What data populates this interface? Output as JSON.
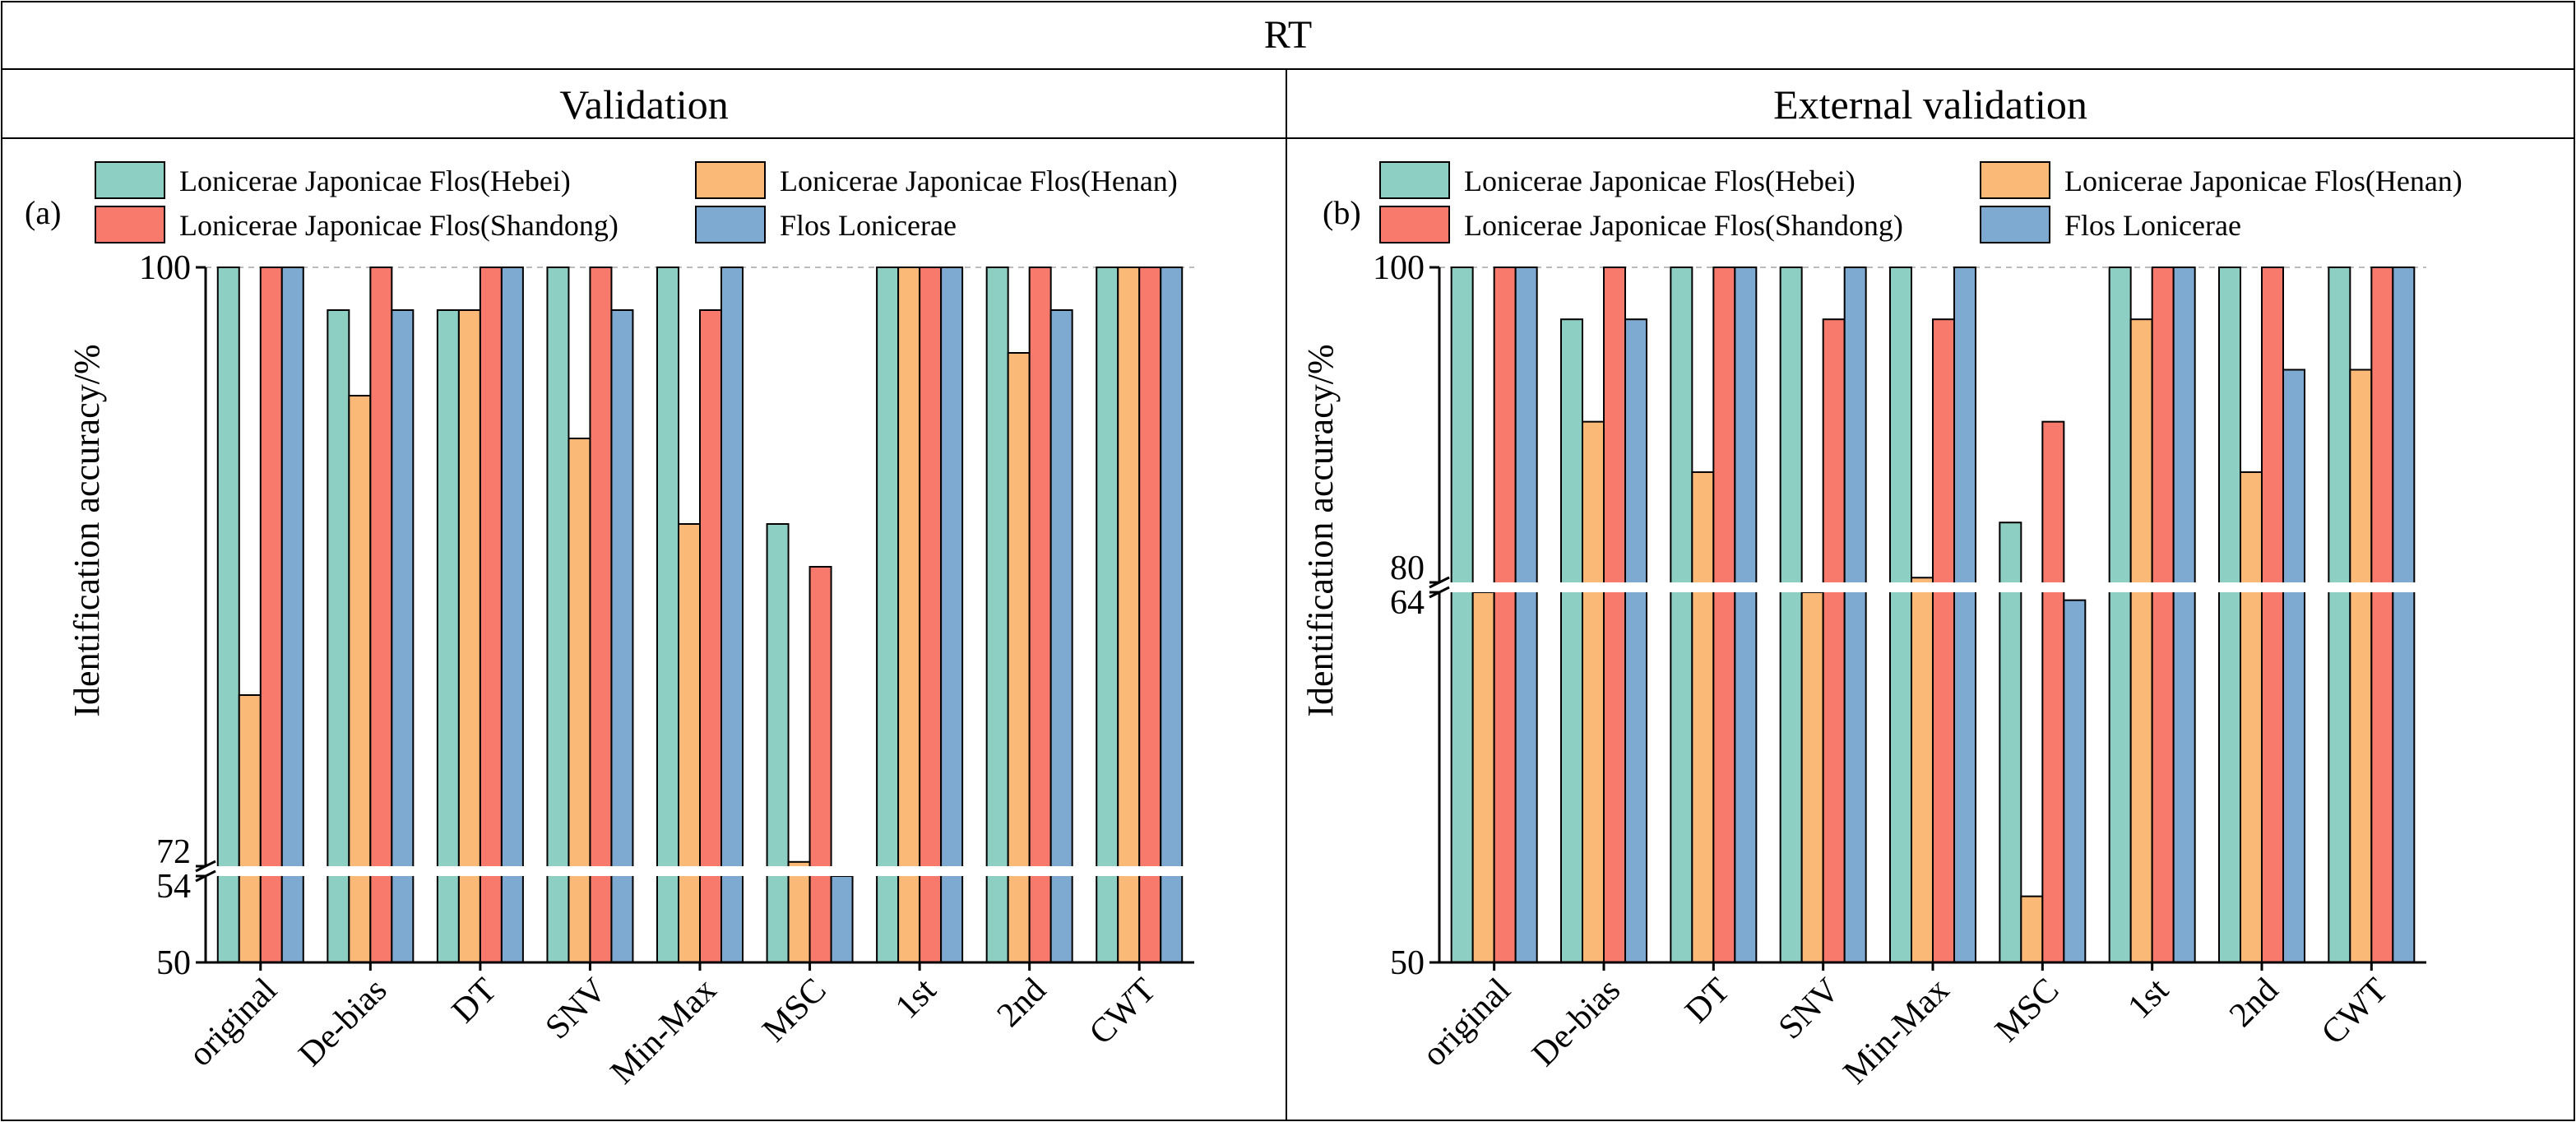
{
  "header": {
    "title": "RT"
  },
  "legend_entries": [
    "Lonicerae Japonicae Flos(Hebei)",
    "Lonicerae Japonicae Flos(Henan)",
    "Lonicerae Japonicae Flos(Shandong)",
    "Flos Lonicerae"
  ],
  "colors": {
    "Lonicerae Japonicae Flos(Hebei)": "#8ecfc4",
    "Lonicerae Japonicae Flos(Henan)": "#fbb977",
    "Lonicerae Japonicae Flos(Shandong)": "#f77a6c",
    "Flos Lonicerae": "#7ea9d1"
  },
  "chart_data": [
    {
      "type": "bar",
      "panel_title": "Validation",
      "panel_label": "(a)",
      "ylabel": "Identification accuracy/%",
      "ylim": [
        50,
        100
      ],
      "axis_break": [
        54,
        72
      ],
      "yticks": [
        50,
        54,
        72,
        100
      ],
      "legend_position": "top",
      "categories": [
        "original",
        "De-bias",
        "DT",
        "SNV",
        "Min-Max",
        "MSC",
        "1st",
        "2nd",
        "CWT"
      ],
      "series": [
        {
          "name": "Lonicerae Japonicae Flos(Hebei)",
          "values": [
            100,
            98,
            98,
            100,
            100,
            88,
            100,
            100,
            100
          ]
        },
        {
          "name": "Lonicerae Japonicae Flos(Henan)",
          "values": [
            80,
            94,
            98,
            92,
            88,
            72.2,
            100,
            96,
            100
          ]
        },
        {
          "name": "Lonicerae Japonicae Flos(Shandong)",
          "values": [
            100,
            100,
            100,
            100,
            98,
            86,
            100,
            100,
            100
          ]
        },
        {
          "name": "Flos Lonicerae",
          "values": [
            100,
            98,
            100,
            98,
            100,
            54,
            100,
            98,
            100
          ]
        }
      ]
    },
    {
      "type": "bar",
      "panel_title": "External validation",
      "panel_label": "(b)",
      "ylabel": "Identification accuracy/%",
      "ylim": [
        50,
        100
      ],
      "axis_break": [
        64,
        80
      ],
      "yticks": [
        50,
        64,
        80,
        100
      ],
      "legend_position": "top",
      "categories": [
        "original",
        "De-bias",
        "DT",
        "SNV",
        "Min-Max",
        "MSC",
        "1st",
        "2nd",
        "CWT"
      ],
      "series": [
        {
          "name": "Lonicerae Japonicae Flos(Hebei)",
          "values": [
            100,
            96.7,
            100,
            100,
            100,
            83.8,
            100,
            100,
            100
          ]
        },
        {
          "name": "Lonicerae Japonicae Flos(Henan)",
          "values": [
            64,
            90.2,
            87,
            64,
            80.3,
            52.5,
            96.7,
            87,
            93.5
          ]
        },
        {
          "name": "Lonicerae Japonicae Flos(Shandong)",
          "values": [
            100,
            100,
            100,
            96.7,
            96.7,
            90.2,
            100,
            100,
            100
          ]
        },
        {
          "name": "Flos Lonicerae",
          "values": [
            100,
            96.7,
            100,
            100,
            100,
            63.7,
            100,
            93.5,
            100
          ]
        }
      ]
    }
  ]
}
